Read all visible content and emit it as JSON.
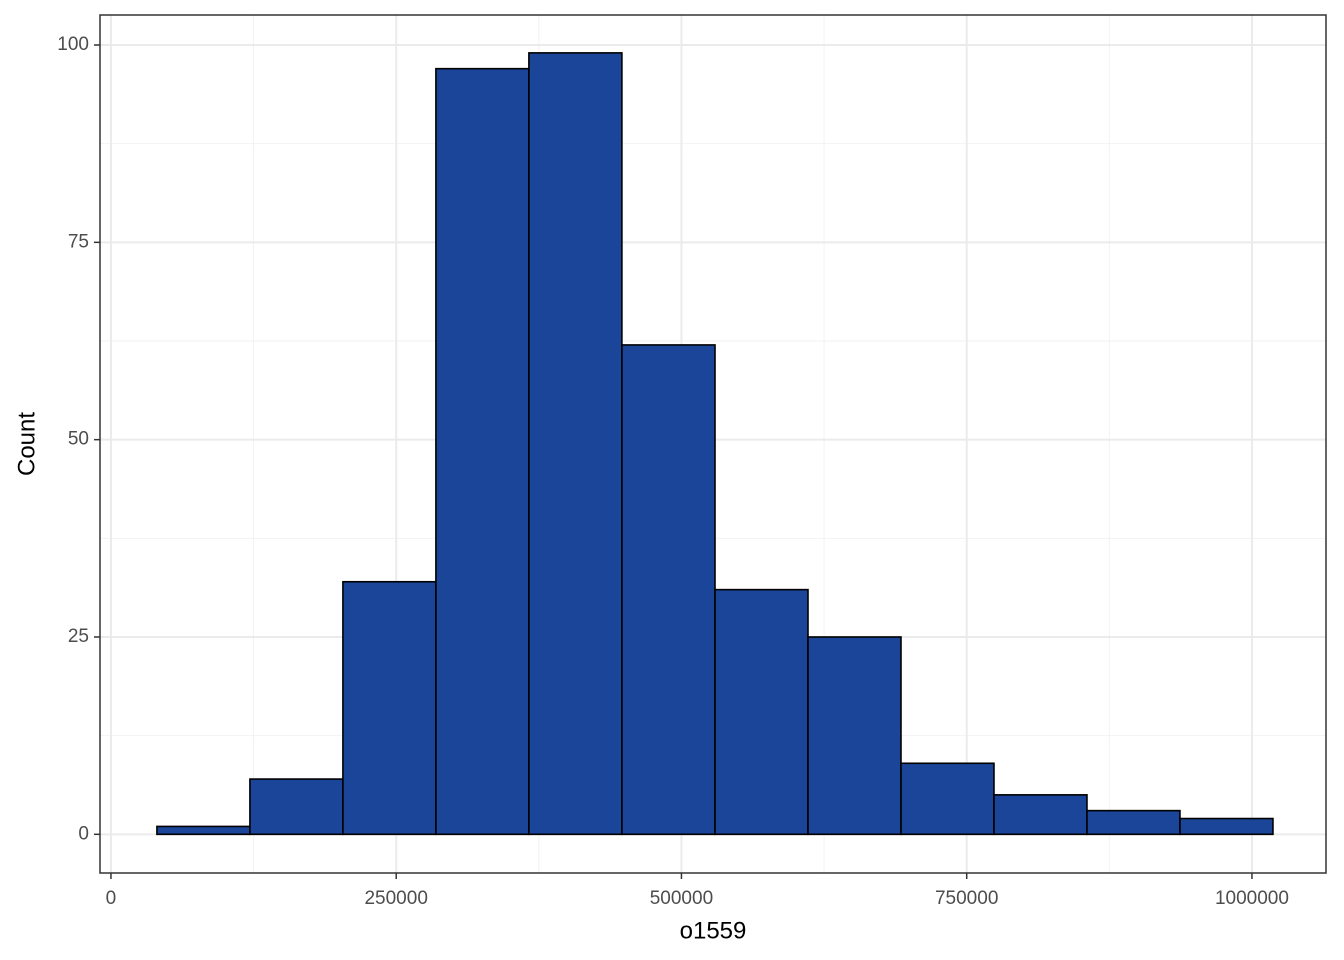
{
  "chart_data": {
    "type": "histogram",
    "x_label": "o1559",
    "y_label": "Count",
    "bins": [
      40300,
      121800,
      203300,
      284800,
      366300,
      447800,
      529400,
      610900,
      692400,
      773900,
      855400,
      936900,
      1018400
    ],
    "values": [
      1,
      7,
      32,
      97,
      99,
      62,
      31,
      25,
      9,
      5,
      3,
      2
    ],
    "color": "#1a4599",
    "edge_color": "#000000",
    "xlim": [
      -9600,
      1064900
    ],
    "ylim": [
      -4.9,
      103.8
    ],
    "xticks": [
      0,
      250000,
      500000,
      750000,
      1000000
    ],
    "yticks": [
      0,
      25,
      50,
      75,
      100
    ],
    "grid": true
  }
}
